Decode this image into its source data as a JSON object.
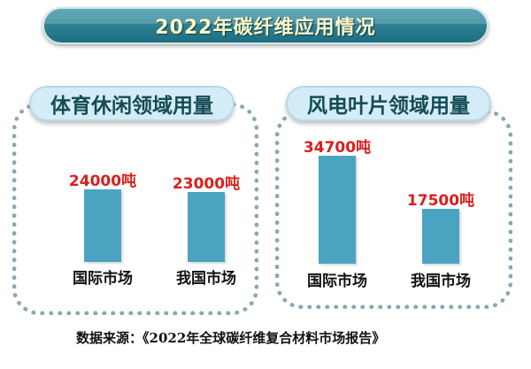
{
  "title": "2022年碳纤维应用情况",
  "source": {
    "label": "数据来源：",
    "text": "《2022年全球碳纤维复合材料市场报告》"
  },
  "colors": {
    "bar": "#4aa4c1",
    "value_label": "#d9201c",
    "banner": "#2a7f92"
  },
  "chart_data": [
    {
      "type": "bar",
      "title": "体育休闲领域用量",
      "categories": [
        "国际市场",
        "我国市场"
      ],
      "values": [
        24000,
        23000
      ],
      "value_labels": [
        "24000吨",
        "23000吨"
      ],
      "unit": "吨",
      "ylim": [
        0,
        24000
      ]
    },
    {
      "type": "bar",
      "title": "风电叶片领域用量",
      "categories": [
        "国际市场",
        "我国市场"
      ],
      "values": [
        34700,
        17500
      ],
      "value_labels": [
        "34700吨",
        "17500吨"
      ],
      "unit": "吨",
      "ylim": [
        0,
        34700
      ]
    }
  ]
}
